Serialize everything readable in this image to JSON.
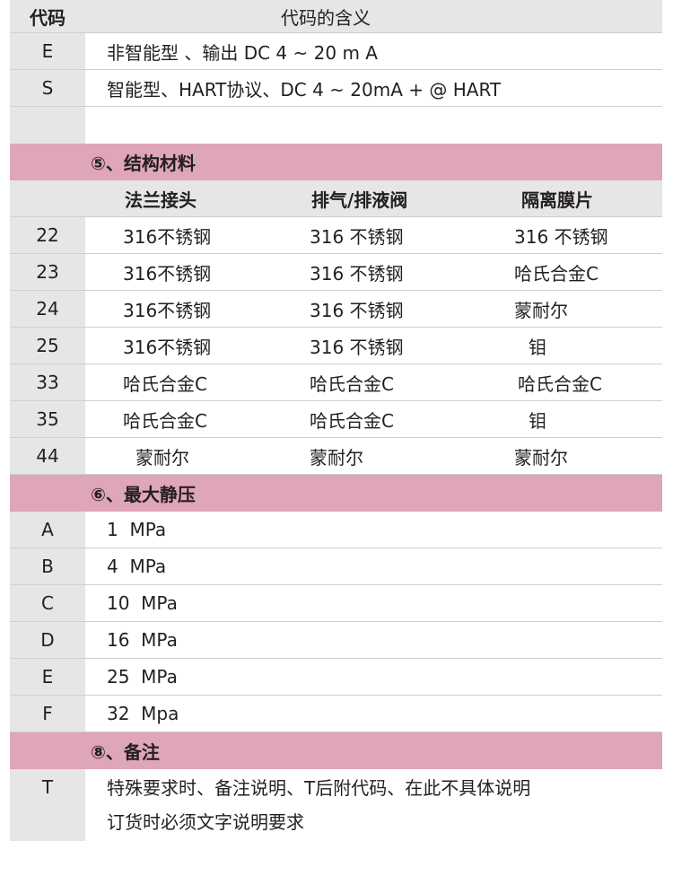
{
  "header": {
    "code": "代码",
    "meaning": "代码的含义"
  },
  "output": [
    {
      "code": "E",
      "desc": "非智能型 、输出 DC 4 ~ 20 m A"
    },
    {
      "code": "S",
      "desc": "智能型、HART协议、DC 4 ~ 20mA + @ HART"
    }
  ],
  "materials": {
    "title": "⑤、结构材料",
    "columns": [
      "法兰接头",
      "排气/排液阀",
      "隔离膜片"
    ],
    "rows": [
      {
        "code": "22",
        "cells": [
          "316不锈钢",
          "316 不锈钢",
          "316 不锈钢"
        ]
      },
      {
        "code": "23",
        "cells": [
          "316不锈钢",
          "316 不锈钢",
          "哈氏合金C"
        ]
      },
      {
        "code": "24",
        "cells": [
          "316不锈钢",
          "316 不锈钢",
          "蒙耐尔"
        ]
      },
      {
        "code": "25",
        "cells": [
          "316不锈钢",
          "316 不锈钢",
          "钼"
        ]
      },
      {
        "code": "33",
        "cells": [
          "哈氏合金C",
          "哈氏合金C",
          "哈氏合金C"
        ]
      },
      {
        "code": "35",
        "cells": [
          "哈氏合金C",
          "哈氏合金C",
          "钼"
        ]
      },
      {
        "code": "44",
        "cells": [
          "蒙耐尔",
          "蒙耐尔",
          "蒙耐尔"
        ]
      }
    ]
  },
  "pressure": {
    "title": "⑥、最大静压",
    "rows": [
      {
        "code": "A",
        "desc": "1  MPa"
      },
      {
        "code": "B",
        "desc": "4  MPa"
      },
      {
        "code": "C",
        "desc": "10  MPa"
      },
      {
        "code": "D",
        "desc": "16  MPa"
      },
      {
        "code": "E",
        "desc": "25  MPa"
      },
      {
        "code": "F",
        "desc": "32  Mpa"
      }
    ]
  },
  "notes": {
    "title": "⑧、备注",
    "code": "T",
    "lines": [
      "特殊要求时、备注说明、T后附代码、在此不具体说明",
      "订货时必须文字说明要求"
    ]
  },
  "colors": {
    "section_band": "#dfa5b9",
    "code_column": "#e6e6e6"
  }
}
